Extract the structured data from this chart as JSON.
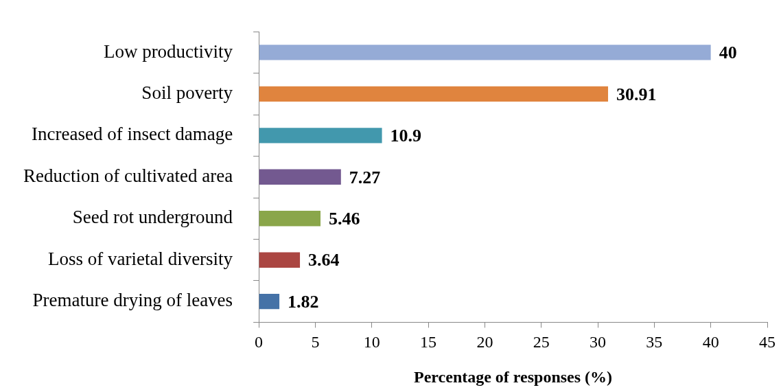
{
  "chart_data": {
    "type": "bar",
    "orientation": "horizontal",
    "xlabel": "Percentage of responses (%)",
    "categories": [
      "Low productivity",
      "Soil poverty",
      "Increased of insect damage",
      "Reduction of cultivated area",
      "Seed rot underground",
      "Loss of varietal diversity",
      "Premature drying of leaves"
    ],
    "values": [
      40,
      30.91,
      10.9,
      7.27,
      5.46,
      3.64,
      1.82
    ],
    "colors": [
      "#95abd6",
      "#e0843e",
      "#4298ad",
      "#735990",
      "#8aa64a",
      "#ab4642",
      "#4572a7"
    ],
    "xlim": [
      0,
      45
    ],
    "xticks": [
      0,
      5,
      10,
      15,
      20,
      25,
      30,
      35,
      40,
      45
    ],
    "grid": false,
    "legend": false,
    "data_labels": true
  }
}
